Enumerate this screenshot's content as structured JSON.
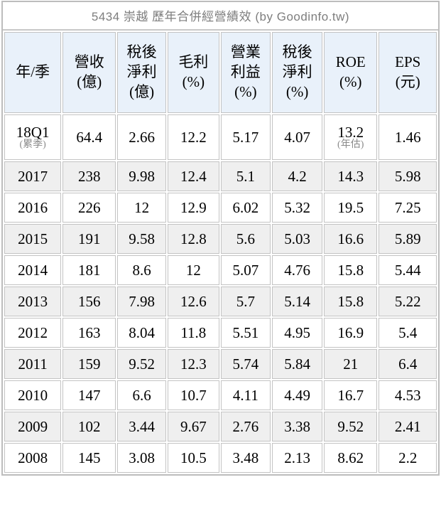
{
  "title": "5434 崇越 歷年合併經營績效 (by Goodinfo.tw)",
  "colors": {
    "header_bg": "#e9f1fa",
    "shaded_row_bg": "#efefef",
    "border": "#c3c3c3",
    "title_text": "#7e7e7e",
    "note_text": "#8a8a8a"
  },
  "table": {
    "headers": [
      {
        "id": "period",
        "lines": [
          "年/季"
        ]
      },
      {
        "id": "revenue",
        "lines": [
          "營收",
          "(億)"
        ]
      },
      {
        "id": "net-profit",
        "lines": [
          "稅後",
          "淨利",
          "(億)"
        ]
      },
      {
        "id": "gross-margin",
        "lines": [
          "毛利",
          "(%)"
        ]
      },
      {
        "id": "op-margin",
        "lines": [
          "營業",
          "利益",
          "(%)"
        ]
      },
      {
        "id": "net-margin",
        "lines": [
          "稅後",
          "淨利",
          "(%)"
        ]
      },
      {
        "id": "roe",
        "lines": [
          "ROE",
          "(%)"
        ]
      },
      {
        "id": "eps",
        "lines": [
          "EPS",
          "(元)"
        ]
      }
    ],
    "rows": [
      {
        "period": "18Q1",
        "period_note": "(累季)",
        "revenue": "64.4",
        "net_profit": "2.66",
        "gross_margin": "12.2",
        "op_margin": "5.17",
        "net_margin": "4.07",
        "roe": "13.2",
        "roe_note": "(年估)",
        "eps": "1.46",
        "shaded": false
      },
      {
        "period": "2017",
        "revenue": "238",
        "net_profit": "9.98",
        "gross_margin": "12.4",
        "op_margin": "5.1",
        "net_margin": "4.2",
        "roe": "14.3",
        "eps": "5.98",
        "shaded": true
      },
      {
        "period": "2016",
        "revenue": "226",
        "net_profit": "12",
        "gross_margin": "12.9",
        "op_margin": "6.02",
        "net_margin": "5.32",
        "roe": "19.5",
        "eps": "7.25",
        "shaded": false
      },
      {
        "period": "2015",
        "revenue": "191",
        "net_profit": "9.58",
        "gross_margin": "12.8",
        "op_margin": "5.6",
        "net_margin": "5.03",
        "roe": "16.6",
        "eps": "5.89",
        "shaded": true
      },
      {
        "period": "2014",
        "revenue": "181",
        "net_profit": "8.6",
        "gross_margin": "12",
        "op_margin": "5.07",
        "net_margin": "4.76",
        "roe": "15.8",
        "eps": "5.44",
        "shaded": false
      },
      {
        "period": "2013",
        "revenue": "156",
        "net_profit": "7.98",
        "gross_margin": "12.6",
        "op_margin": "5.7",
        "net_margin": "5.14",
        "roe": "15.8",
        "eps": "5.22",
        "shaded": true
      },
      {
        "period": "2012",
        "revenue": "163",
        "net_profit": "8.04",
        "gross_margin": "11.8",
        "op_margin": "5.51",
        "net_margin": "4.95",
        "roe": "16.9",
        "eps": "5.4",
        "shaded": false
      },
      {
        "period": "2011",
        "revenue": "159",
        "net_profit": "9.52",
        "gross_margin": "12.3",
        "op_margin": "5.74",
        "net_margin": "5.84",
        "roe": "21",
        "eps": "6.4",
        "shaded": true
      },
      {
        "period": "2010",
        "revenue": "147",
        "net_profit": "6.6",
        "gross_margin": "10.7",
        "op_margin": "4.11",
        "net_margin": "4.49",
        "roe": "16.7",
        "eps": "4.53",
        "shaded": false
      },
      {
        "period": "2009",
        "revenue": "102",
        "net_profit": "3.44",
        "gross_margin": "9.67",
        "op_margin": "2.76",
        "net_margin": "3.38",
        "roe": "9.52",
        "eps": "2.41",
        "shaded": true
      },
      {
        "period": "2008",
        "revenue": "145",
        "net_profit": "3.08",
        "gross_margin": "10.5",
        "op_margin": "3.48",
        "net_margin": "2.13",
        "roe": "8.62",
        "eps": "2.2",
        "shaded": false
      }
    ]
  }
}
